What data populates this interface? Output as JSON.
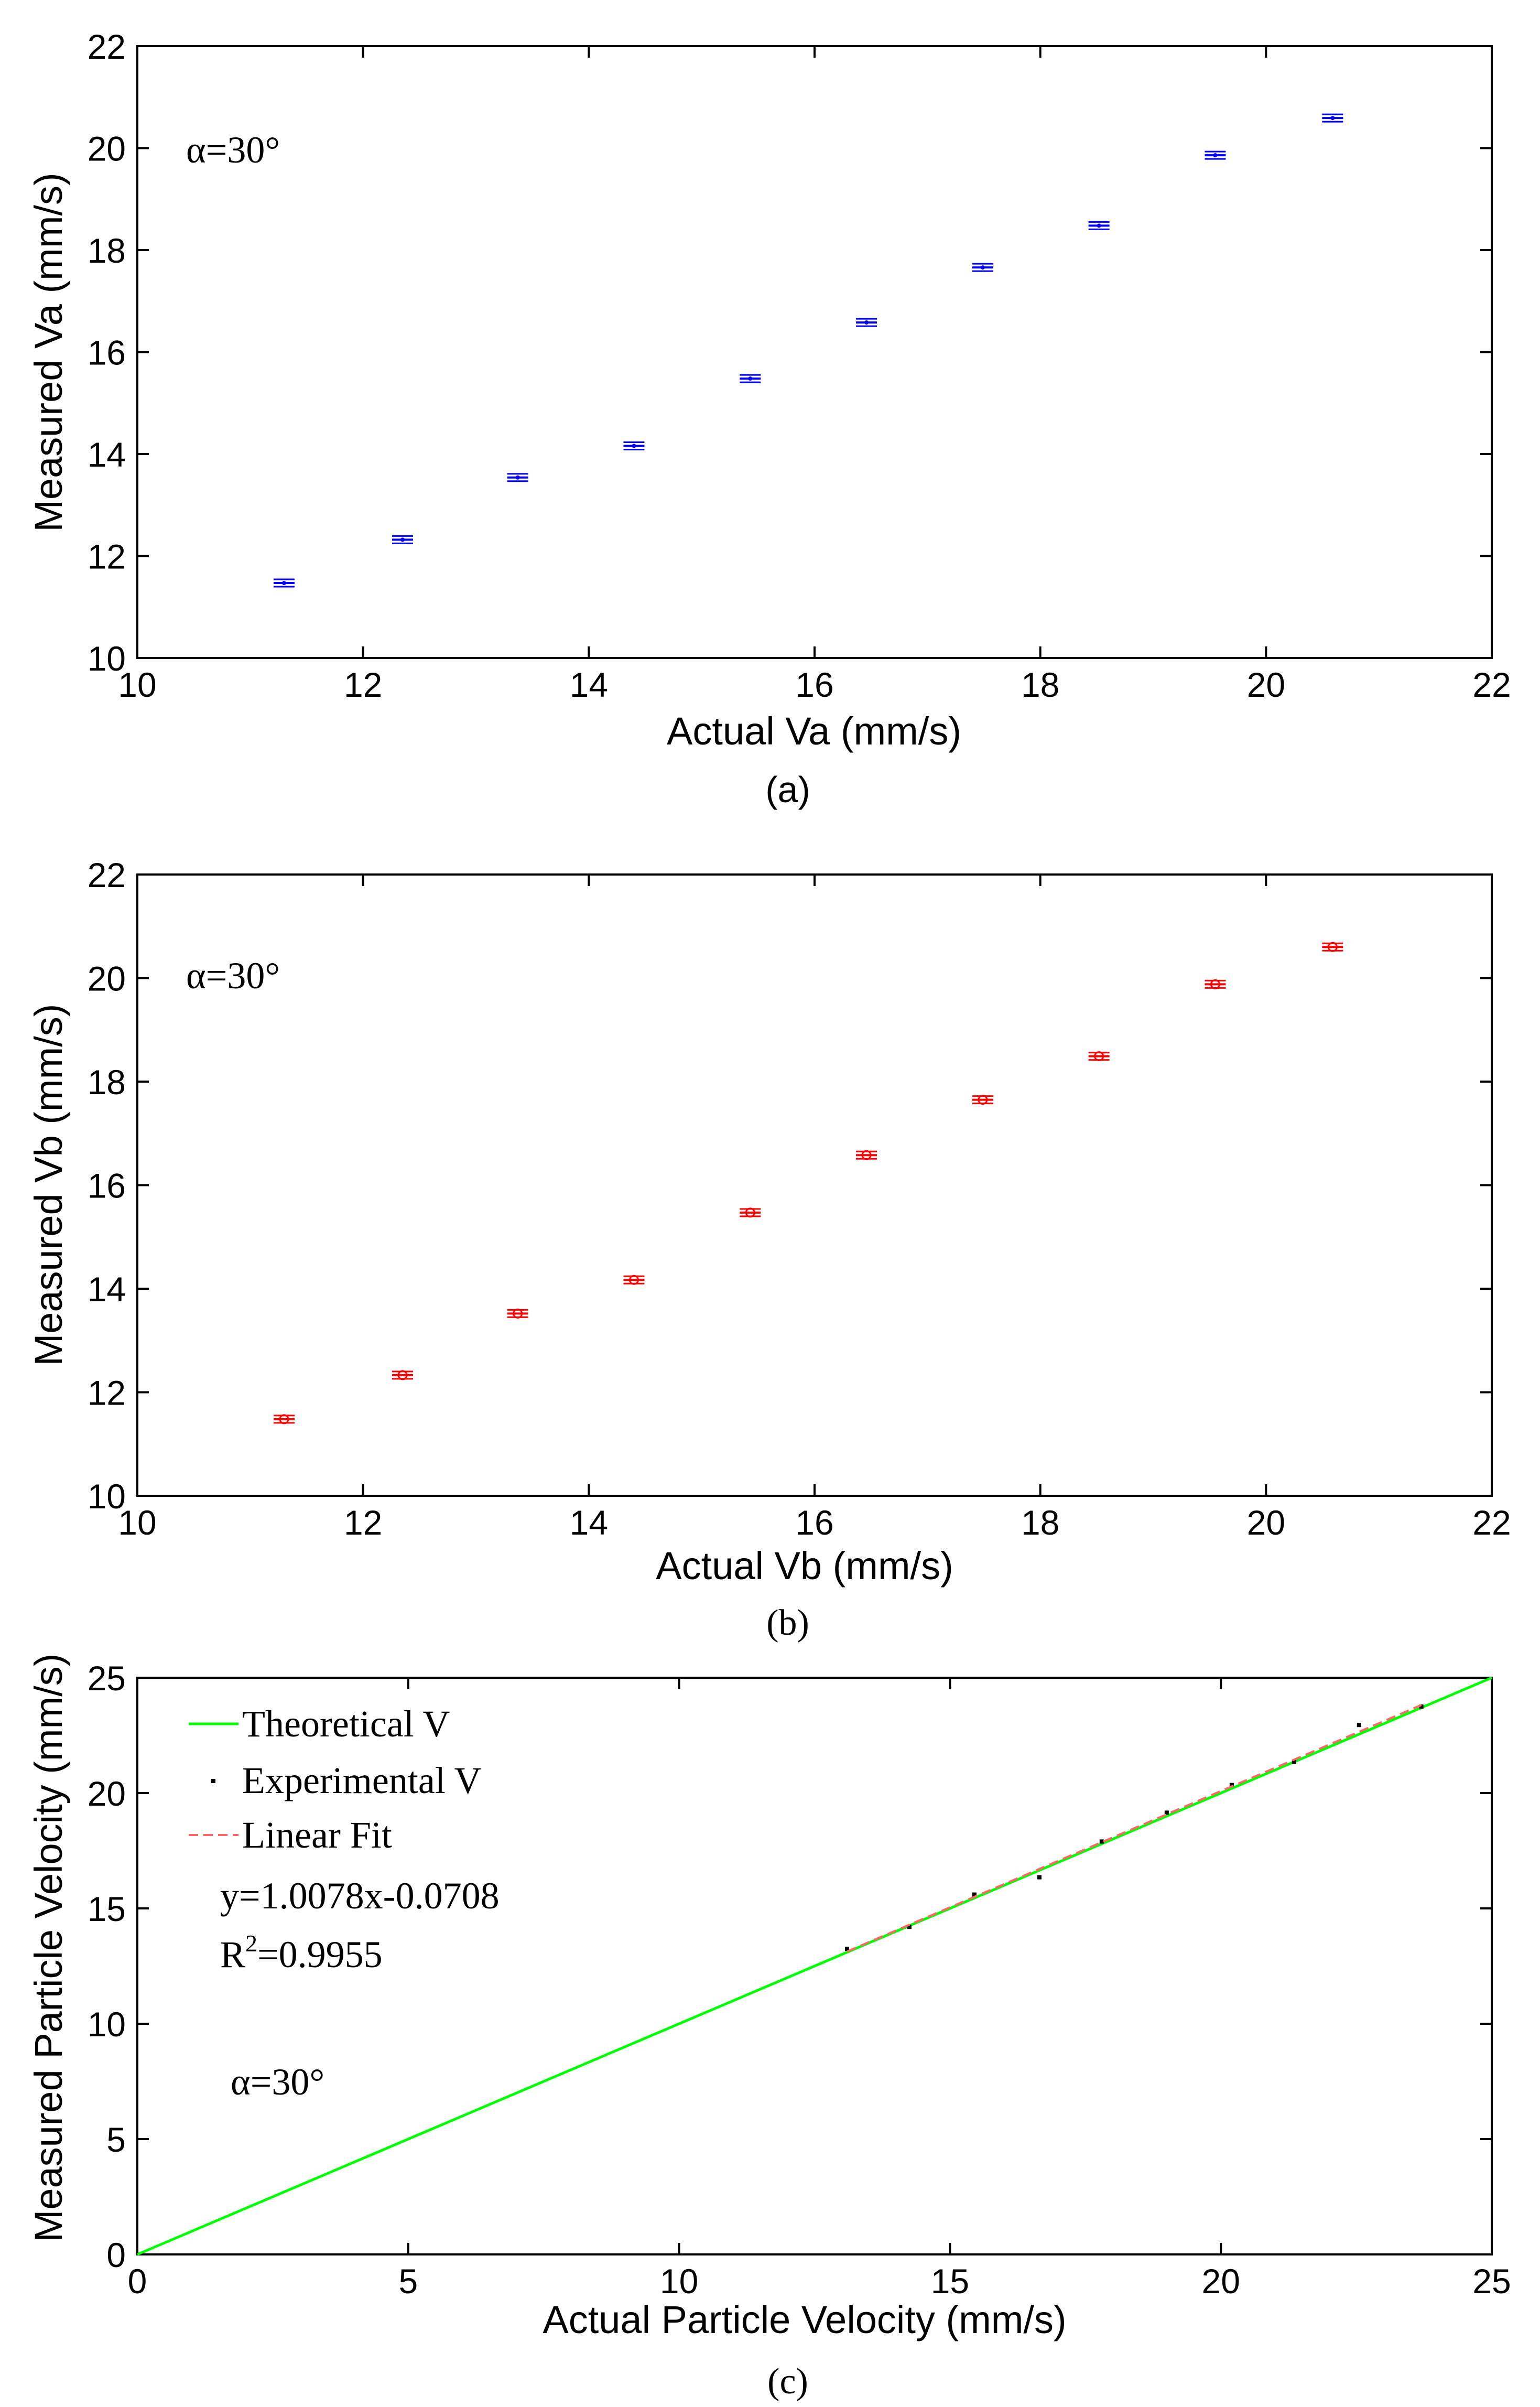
{
  "chart_data": [
    {
      "type": "scatter",
      "panel": "a",
      "caption": "(a)",
      "xlabel": "Actual Va (mm/s)",
      "ylabel": "Measured  Va (mm/s)",
      "xlim": [
        10,
        22
      ],
      "ylim": [
        10,
        22
      ],
      "xticks": [
        10,
        12,
        14,
        16,
        18,
        20,
        22
      ],
      "yticks": [
        10,
        12,
        14,
        16,
        18,
        20,
        22
      ],
      "annotation": "α=30°",
      "marker": "errorbar",
      "color": "#0000ff",
      "x": [
        11.3,
        12.35,
        13.37,
        14.4,
        15.43,
        16.46,
        17.49,
        18.52,
        19.55,
        20.59
      ],
      "y": [
        11.47,
        12.32,
        13.54,
        14.16,
        15.48,
        16.58,
        17.66,
        18.48,
        19.86,
        20.59
      ]
    },
    {
      "type": "scatter",
      "panel": "b",
      "caption": "(b)",
      "xlabel": "Actual Vb (mm/s)",
      "ylabel": "Measured  Vb (mm/s)",
      "xlim": [
        10,
        22
      ],
      "ylim": [
        10,
        22
      ],
      "xticks": [
        10,
        12,
        14,
        16,
        18,
        20,
        22
      ],
      "yticks": [
        10,
        12,
        14,
        16,
        18,
        20,
        22
      ],
      "annotation": "α=30°",
      "marker": "circle-errorbar",
      "color": "#ff0000",
      "x": [
        11.3,
        12.35,
        13.37,
        14.4,
        15.43,
        16.46,
        17.49,
        18.52,
        19.55,
        20.59
      ],
      "y": [
        11.48,
        12.33,
        13.52,
        14.17,
        15.47,
        16.58,
        17.65,
        18.49,
        19.88,
        20.6
      ]
    },
    {
      "type": "scatter",
      "panel": "c",
      "caption": "(c)",
      "xlabel": "Actual Particle Velocity (mm/s)",
      "ylabel": "Measured Particle Velocity (mm/s)",
      "xlim": [
        0,
        25
      ],
      "ylim": [
        0,
        25
      ],
      "xticks": [
        0,
        5,
        10,
        15,
        20,
        25
      ],
      "yticks": [
        0,
        5,
        10,
        15,
        20,
        25
      ],
      "annotation": "α=30°",
      "legend_position": "top-left",
      "series": [
        {
          "name": "Theoretical V",
          "kind": "line",
          "color": "#00ff00",
          "x": [
            0,
            25
          ],
          "y": [
            0,
            25
          ]
        },
        {
          "name": "Experimental V",
          "kind": "points",
          "color": "#000000",
          "x": [
            13.1,
            14.25,
            15.45,
            16.65,
            17.8,
            19.0,
            20.2,
            21.35,
            22.55,
            23.7
          ],
          "y": [
            13.25,
            14.2,
            15.6,
            16.35,
            17.9,
            19.15,
            20.35,
            21.35,
            22.95,
            23.75
          ]
        },
        {
          "name": "Linear  Fit",
          "kind": "dashed",
          "color": "#ff6666",
          "x": [
            13.1,
            23.7
          ],
          "y": [
            13.132,
            23.815
          ]
        }
      ],
      "fit_equation": "y=1.0078x-0.0708",
      "r2_prefix": "R",
      "r2_exponent": "2",
      "r2_value": "=0.9955"
    }
  ]
}
